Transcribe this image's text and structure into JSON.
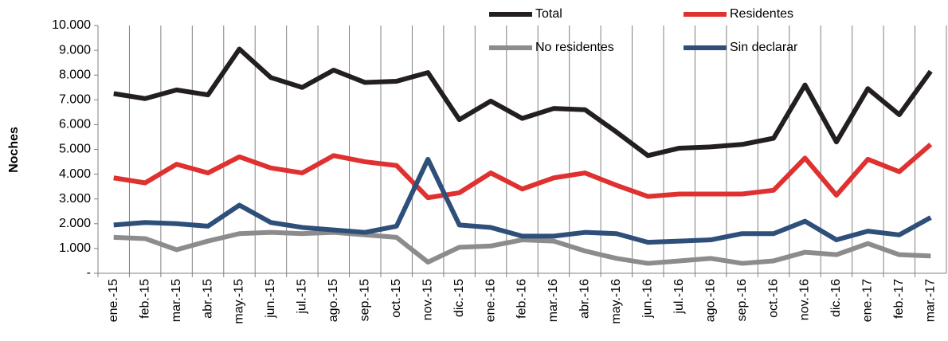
{
  "chart_data": {
    "type": "line",
    "y_label": "Noches",
    "categories": [
      "ene.-15",
      "feb.-15",
      "mar.-15",
      "abr.-15",
      "may.-15",
      "jun.-15",
      "jul.-15",
      "ago.-15",
      "sep.-15",
      "oct.-15",
      "nov.-15",
      "dic.-15",
      "ene.-16",
      "feb.-16",
      "mar.-16",
      "abr.-16",
      "may.-16",
      "jun.-16",
      "jul.-16",
      "ago.-16",
      "sep.-16",
      "oct.-16",
      "nov.-16",
      "dic.-16",
      "ene.-17",
      "feb.-17",
      "mar.-17"
    ],
    "series": [
      {
        "name": "Total",
        "color": "#231f20",
        "values": [
          7250,
          7050,
          7400,
          7200,
          9050,
          7900,
          7500,
          8200,
          7700,
          7750,
          8100,
          6200,
          6950,
          6250,
          6650,
          6600,
          5700,
          4750,
          5050,
          5100,
          5200,
          5450,
          7600,
          5300,
          7450,
          6400,
          8150
        ]
      },
      {
        "name": "Residentes",
        "color": "#e03131",
        "values": [
          3850,
          3650,
          4400,
          4050,
          4700,
          4250,
          4050,
          4750,
          4500,
          4350,
          3050,
          3250,
          4050,
          3400,
          3850,
          4050,
          3550,
          3100,
          3200,
          3200,
          3200,
          3350,
          4650,
          3150,
          4600,
          4100,
          5200
        ]
      },
      {
        "name": "No residentes",
        "color": "#8c8c8c",
        "values": [
          1450,
          1400,
          950,
          1300,
          1600,
          1650,
          1600,
          1650,
          1550,
          1450,
          450,
          1050,
          1100,
          1350,
          1300,
          900,
          600,
          400,
          500,
          600,
          400,
          500,
          850,
          750,
          1200,
          750,
          700
        ]
      },
      {
        "name": "Sin declarar",
        "color": "#2e4f7a",
        "values": [
          1950,
          2050,
          2000,
          1900,
          2750,
          2050,
          1850,
          1750,
          1650,
          1900,
          4600,
          1950,
          1850,
          1500,
          1500,
          1650,
          1600,
          1250,
          1300,
          1350,
          1600,
          1600,
          2100,
          1350,
          1700,
          1550,
          2250
        ]
      }
    ],
    "ylim": [
      0,
      10000
    ],
    "yticks": [
      {
        "value": 0,
        "label": "-"
      },
      {
        "value": 1000,
        "label": "1.000"
      },
      {
        "value": 2000,
        "label": "2.000"
      },
      {
        "value": 3000,
        "label": "3.000"
      },
      {
        "value": 4000,
        "label": "4.000"
      },
      {
        "value": 5000,
        "label": "5.000"
      },
      {
        "value": 6000,
        "label": "6.000"
      },
      {
        "value": 7000,
        "label": "7.000"
      },
      {
        "value": 8000,
        "label": "8.000"
      },
      {
        "value": 9000,
        "label": "9.000"
      },
      {
        "value": 10000,
        "label": "10.000"
      }
    ],
    "grid": "x"
  }
}
